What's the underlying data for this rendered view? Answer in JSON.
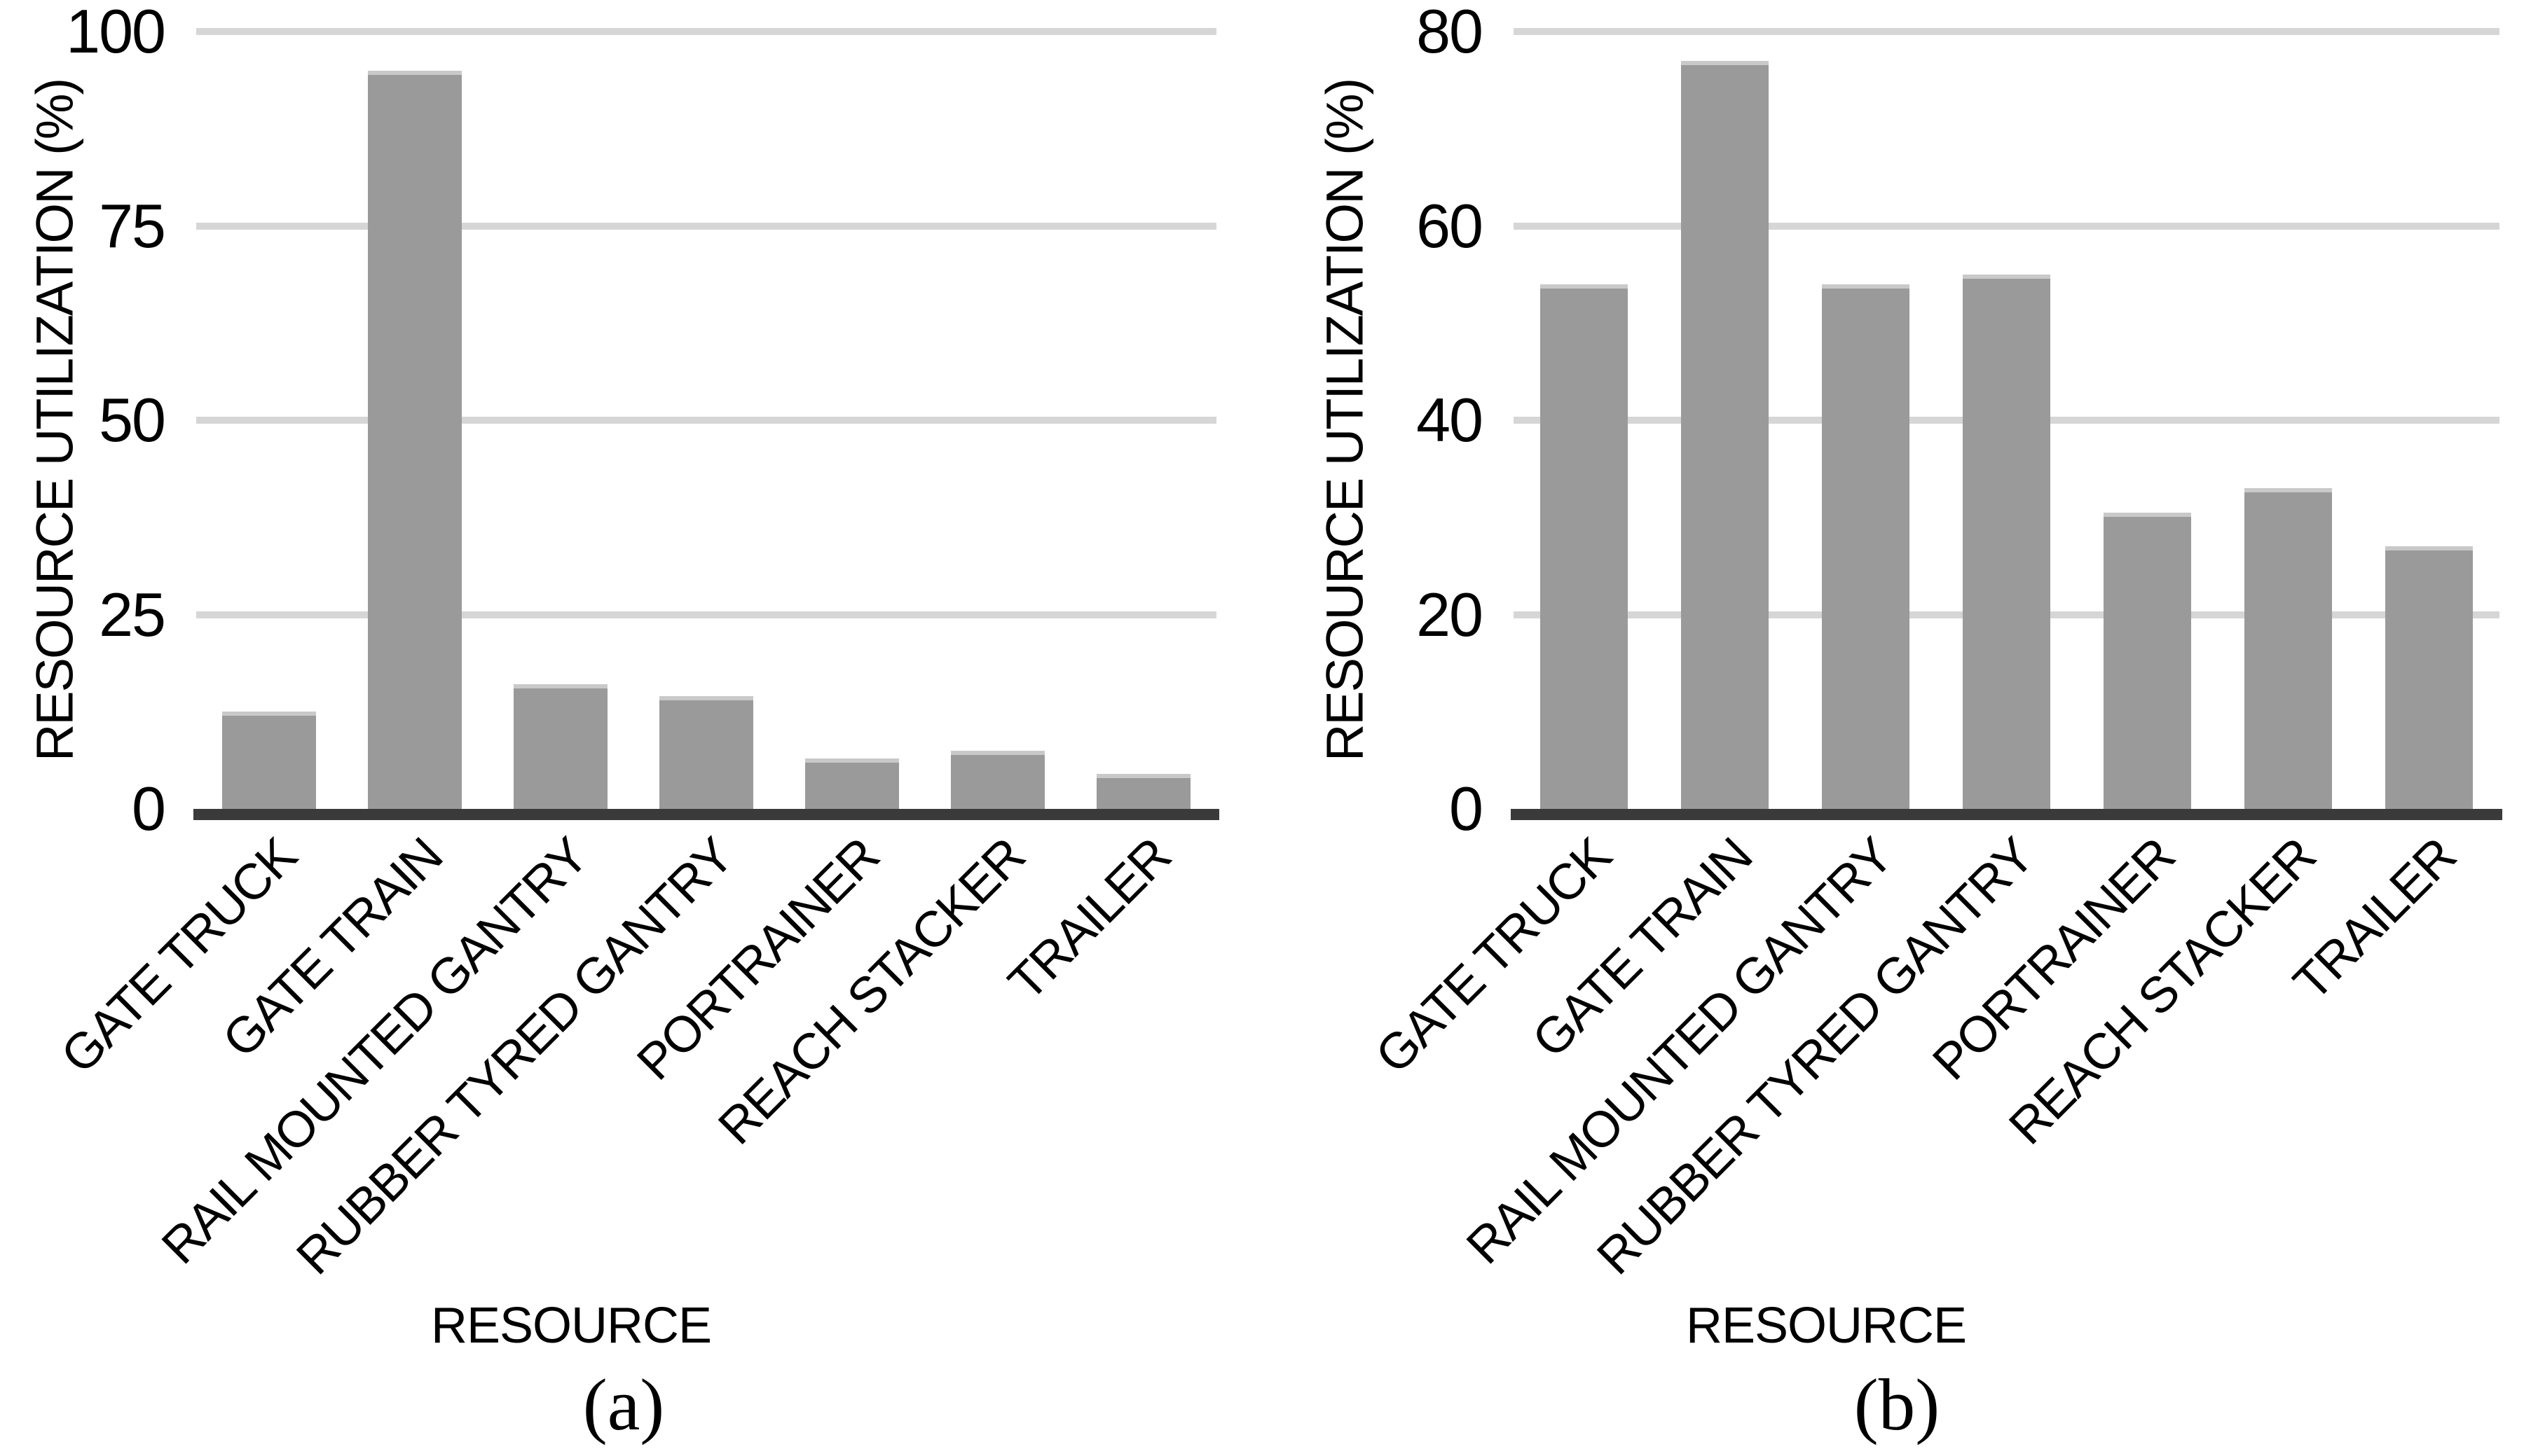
{
  "figure": {
    "background": "#ffffff",
    "panels": [
      {
        "caption": "(a)"
      },
      {
        "caption": "(b)"
      }
    ]
  },
  "colors": {
    "bar": "#9a9a9a",
    "bar_top_edge": "#c9c9c9",
    "gridline": "#d6d6d6",
    "axis_line": "#3a3a3a",
    "text": "#000000",
    "background": "#ffffff"
  },
  "chart_data": [
    {
      "type": "bar",
      "panel": "a",
      "title": "",
      "categories": [
        "GATE TRUCK",
        "GATE TRAIN",
        "RAIL MOUNTED GANTRY",
        "RUBBER TYRED GANTRY",
        "PORTRAINER",
        "REACH STACKER",
        "TRAILER"
      ],
      "values": [
        12.5,
        95,
        16,
        14.5,
        6.5,
        7.5,
        4.5
      ],
      "xlabel": "RESOURCE",
      "ylabel": "RESOURCE UTILIZATION (%)",
      "ylim": [
        0,
        100
      ],
      "yticks": [
        0,
        25,
        50,
        75,
        100
      ],
      "grid": "horizontal gridlines only",
      "legend": "none",
      "bar_color": "#9a9a9a",
      "x_tick_rotation_deg": 45
    },
    {
      "type": "bar",
      "panel": "b",
      "title": "",
      "categories": [
        "GATE TRUCK",
        "GATE TRAIN",
        "RAIL MOUNTED GANTRY",
        "RUBBER TYRED GANTRY",
        "PORTRAINER",
        "REACH STACKER",
        "TRAILER"
      ],
      "values": [
        54,
        77,
        54,
        55,
        30.5,
        33,
        27
      ],
      "xlabel": "RESOURCE",
      "ylabel": "RESOURCE UTILIZATION (%)",
      "ylim": [
        0,
        80
      ],
      "yticks": [
        0,
        20,
        40,
        60,
        80
      ],
      "grid": "horizontal gridlines only",
      "legend": "none",
      "bar_color": "#9a9a9a",
      "x_tick_rotation_deg": 45
    }
  ]
}
